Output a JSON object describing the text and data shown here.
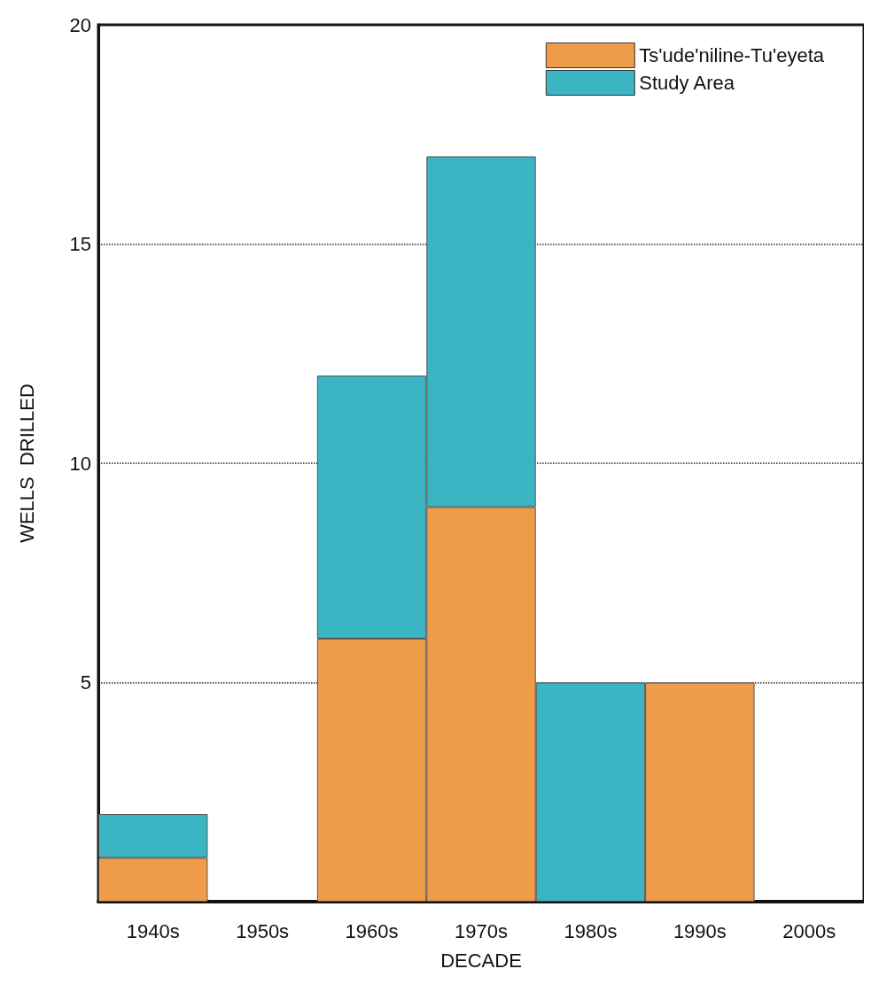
{
  "chart_data": {
    "type": "bar",
    "stacked": true,
    "xlabel": "DECADE",
    "ylabel": "WELLS  DRILLED",
    "categories": [
      "1940s",
      "1950s",
      "1960s",
      "1970s",
      "1980s",
      "1990s",
      "2000s"
    ],
    "series": [
      {
        "name": "Ts'ude'niline-Tu'eyeta",
        "color": "#ee9b4a",
        "values": [
          1,
          0,
          6,
          9,
          0,
          5,
          0
        ]
      },
      {
        "name": "Study Area",
        "color": "#3bb4c4",
        "values": [
          1,
          0,
          6,
          8,
          5,
          0,
          0
        ]
      }
    ],
    "ylim": [
      0,
      20
    ],
    "yticks": [
      {
        "value": 0,
        "label": null
      },
      5,
      10,
      15,
      20
    ],
    "grid": "y",
    "legend": "top right"
  }
}
